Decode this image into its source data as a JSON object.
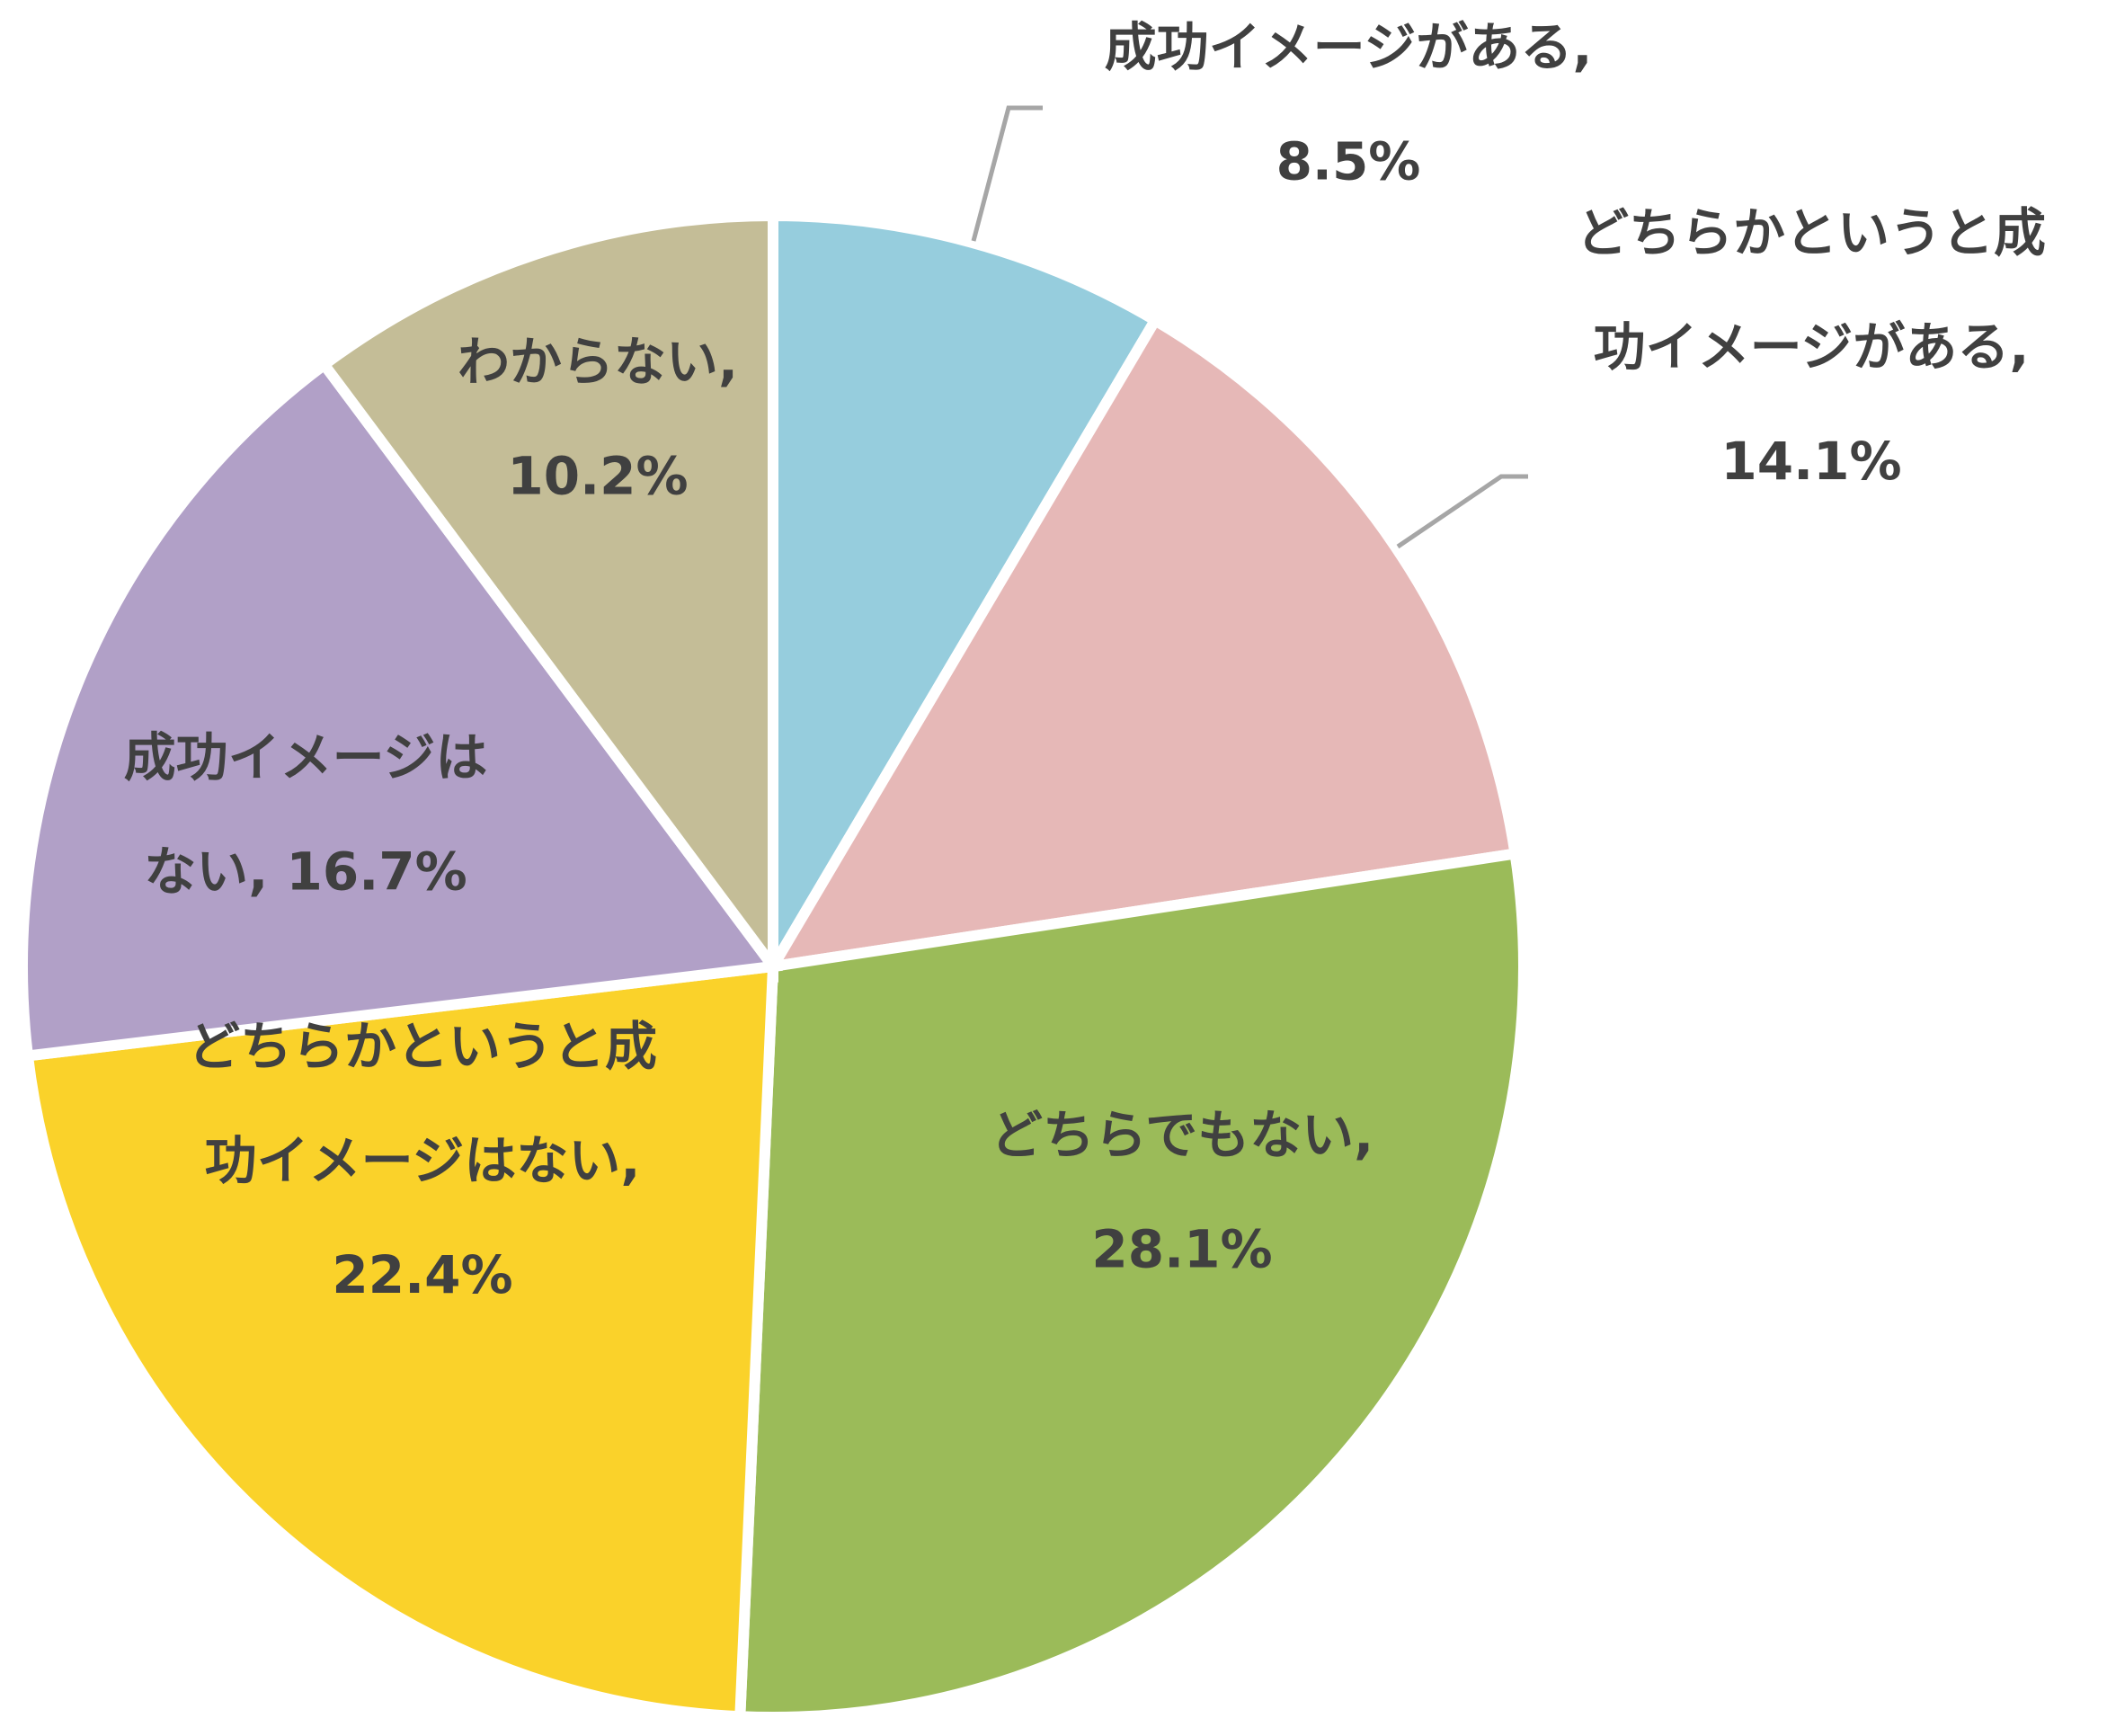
{
  "chart_data": {
    "type": "pie",
    "title": "",
    "slices": [
      {
        "label": "成功イメージがある",
        "value": 8.5,
        "display": "8.5%",
        "color": "#96cddd",
        "label_lines": [
          "成功イメージがある,",
          "8.5%"
        ]
      },
      {
        "label": "どちらかというと成功イメージがある",
        "value": 14.1,
        "display": "14.1%",
        "color": "#e6b8b7",
        "label_lines": [
          "どちらかというと成",
          "功イメージがある,",
          "14.1%"
        ]
      },
      {
        "label": "どちらでもない",
        "value": 28.1,
        "display": "28.1%",
        "color": "#9bbb59",
        "label_lines": [
          "どちらでもない,",
          "28.1%"
        ]
      },
      {
        "label": "どちらかというと成功イメージはない",
        "value": 22.4,
        "display": "22.4%",
        "color": "#fad22a",
        "label_lines": [
          "どちらかというと成",
          "功イメージはない,",
          "22.4%"
        ]
      },
      {
        "label": "成功イメージはない",
        "value": 16.7,
        "display": "16.7%",
        "color": "#b1a0c7",
        "label_lines": [
          "成功イメージは",
          "ない, 16.7%"
        ]
      },
      {
        "label": "わからない",
        "value": 10.2,
        "display": "10.2%",
        "color": "#c4bd97",
        "label_lines": [
          "わからない,",
          "10.2%"
        ]
      }
    ],
    "start_angle": "12 o'clock",
    "direction": "clockwise",
    "legend": "none",
    "data_labels": "category name and value"
  }
}
